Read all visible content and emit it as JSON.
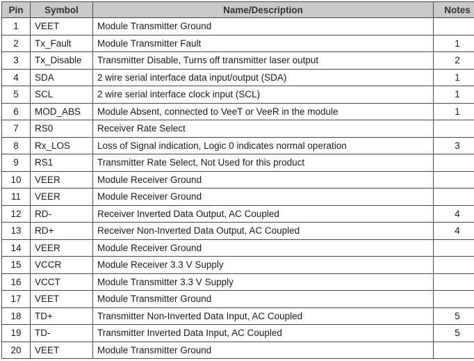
{
  "table": {
    "headers": {
      "pin": "Pin",
      "symbol": "Symbol",
      "description": "Name/Description",
      "notes": "Notes"
    },
    "rows": [
      {
        "pin": "1",
        "symbol": "VEET",
        "description": "Module Transmitter Ground",
        "notes": ""
      },
      {
        "pin": "2",
        "symbol": "Tx_Fault",
        "description": "Module Transmitter Fault",
        "notes": "1"
      },
      {
        "pin": "3",
        "symbol": "Tx_Disable",
        "description": "Transmitter Disable, Turns off transmitter laser output",
        "notes": "2"
      },
      {
        "pin": "4",
        "symbol": "SDA",
        "description": "2 wire serial interface data input/output (SDA)",
        "notes": "1"
      },
      {
        "pin": "5",
        "symbol": "SCL",
        "description": "2 wire serial interface clock input (SCL)",
        "notes": "1"
      },
      {
        "pin": "6",
        "symbol": "MOD_ABS",
        "description": " Module Absent, connected to VeeT or VeeR in the module",
        "notes": "1"
      },
      {
        "pin": "7",
        "symbol": "RS0",
        "description": "Receiver Rate Select",
        "notes": ""
      },
      {
        "pin": "8",
        "symbol": "Rx_LOS",
        "description": "Loss of Signal indication, Logic 0 indicates normal operation",
        "notes": "3"
      },
      {
        "pin": "9",
        "symbol": "RS1",
        "description": "Transmitter Rate Select, Not Used for this product",
        "notes": ""
      },
      {
        "pin": "10",
        "symbol": "VEER",
        "description": "Module Receiver Ground",
        "notes": ""
      },
      {
        "pin": "11",
        "symbol": "VEER",
        "description": "Module Receiver Ground",
        "notes": ""
      },
      {
        "pin": "12",
        "symbol": "RD-",
        "description": "Receiver Inverted Data Output, AC Coupled",
        "notes": "4"
      },
      {
        "pin": "13",
        "symbol": "RD+",
        "description": "Receiver Non-Inverted Data Output, AC Coupled",
        "notes": "4"
      },
      {
        "pin": "14",
        "symbol": "VEER",
        "description": "Module Receiver Ground",
        "notes": ""
      },
      {
        "pin": "15",
        "symbol": "VCCR",
        "description": "Module Receiver 3.3 V Supply",
        "notes": ""
      },
      {
        "pin": "16",
        "symbol": "VCCT",
        "description": "Module Transmitter 3.3 V Supply",
        "notes": ""
      },
      {
        "pin": "17",
        "symbol": "VEET",
        "description": "Module Transmitter Ground",
        "notes": ""
      },
      {
        "pin": "18",
        "symbol": "TD+",
        "description": "Transmitter Non-Inverted Data Input, AC Coupled",
        "notes": "5"
      },
      {
        "pin": "19",
        "symbol": "TD-",
        "description": "Transmitter Inverted Data Input, AC Coupled",
        "notes": "5"
      },
      {
        "pin": "20",
        "symbol": "VEET",
        "description": "Module Transmitter Ground",
        "notes": ""
      }
    ]
  }
}
